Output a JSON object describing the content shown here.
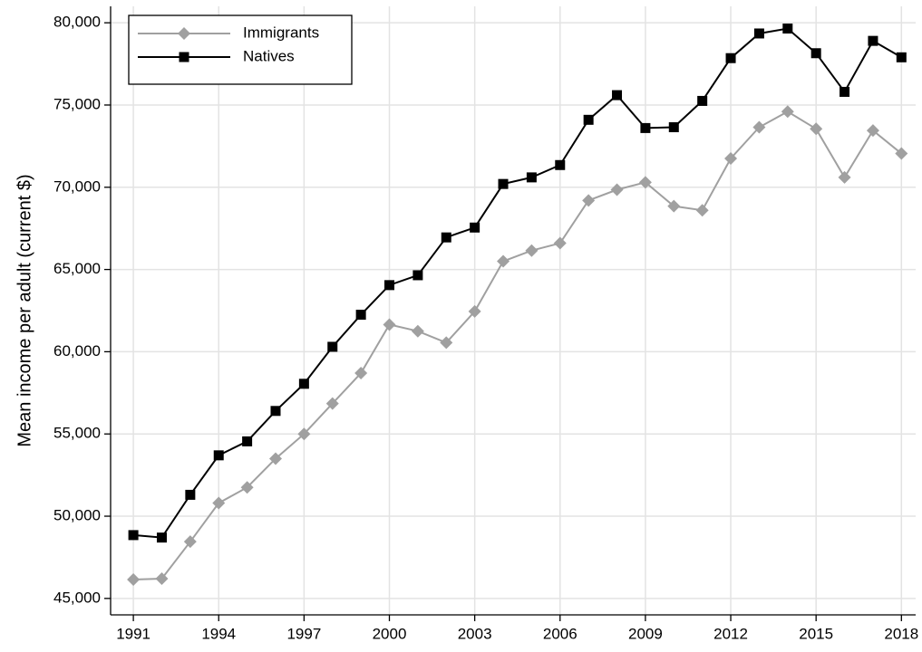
{
  "chart_data": {
    "type": "line",
    "y_label": "Mean income per adult (current $)",
    "x": [
      1991,
      1992,
      1993,
      1994,
      1995,
      1996,
      1997,
      1998,
      1999,
      2000,
      2001,
      2002,
      2003,
      2004,
      2005,
      2006,
      2007,
      2008,
      2009,
      2010,
      2011,
      2012,
      2013,
      2014,
      2015,
      2016,
      2017,
      2018
    ],
    "series": [
      {
        "name": "Immigrants",
        "color": "#a0a0a0",
        "marker": "diamond",
        "values": [
          46150,
          46200,
          48450,
          50800,
          51750,
          53500,
          55000,
          56850,
          58700,
          61650,
          61250,
          60550,
          62450,
          65500,
          66150,
          66600,
          69200,
          69850,
          70300,
          68850,
          68600,
          71750,
          73650,
          74600,
          73550,
          70600,
          73450,
          72050
        ]
      },
      {
        "name": "Natives",
        "color": "#000000",
        "marker": "square",
        "values": [
          48850,
          48700,
          51300,
          53700,
          54550,
          56400,
          58050,
          60300,
          62250,
          64050,
          64650,
          66950,
          67550,
          70200,
          70600,
          71350,
          74100,
          75600,
          73600,
          73650,
          75250,
          77850,
          79350,
          79650,
          78150,
          75800,
          78900,
          77900
        ]
      }
    ],
    "xlim": [
      1990.2,
      2018.5
    ],
    "xticks": [
      1991,
      1994,
      1997,
      2000,
      2003,
      2006,
      2009,
      2012,
      2015,
      2018
    ],
    "ylim": [
      44000,
      81000
    ],
    "yticks": [
      {
        "value": 45000,
        "label": "45,000"
      },
      {
        "value": 50000,
        "label": "50,000"
      },
      {
        "value": 55000,
        "label": "55,000"
      },
      {
        "value": 60000,
        "label": "60,000"
      },
      {
        "value": 65000,
        "label": "65,000"
      },
      {
        "value": 70000,
        "label": "70,000"
      },
      {
        "value": 75000,
        "label": "75,000"
      },
      {
        "value": 80000,
        "label": "80,000"
      }
    ],
    "grid": true,
    "legend": "top-left"
  }
}
